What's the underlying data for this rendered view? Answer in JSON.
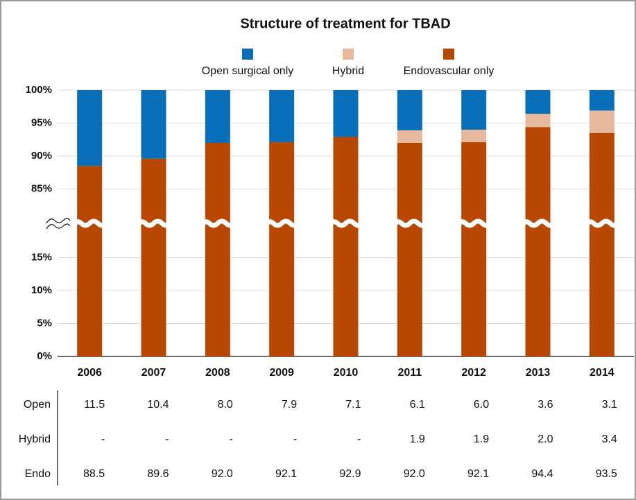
{
  "chart_data": {
    "type": "stacked_bar",
    "title": "Structure of treatment for TBAD",
    "categories": [
      "2006",
      "2007",
      "2008",
      "2009",
      "2010",
      "2011",
      "2012",
      "2013",
      "2014"
    ],
    "series": [
      {
        "name": "Open surgical only",
        "table_name": "Open",
        "color": "#0a6fba",
        "values": [
          11.5,
          10.4,
          8.0,
          7.9,
          7.1,
          6.1,
          6.0,
          3.6,
          3.1
        ],
        "value_labels": [
          "11.5",
          "10.4",
          "8.0",
          "7.9",
          "7.1",
          "6.1",
          "6.0",
          "3.6",
          "3.1"
        ]
      },
      {
        "name": "Hybrid",
        "table_name": "Hybrid",
        "color": "#e6b89c",
        "values": [
          null,
          null,
          null,
          null,
          null,
          1.9,
          1.9,
          2.0,
          3.4
        ],
        "value_labels": [
          "-",
          "-",
          "-",
          "-",
          "-",
          "1.9",
          "1.9",
          "2.0",
          "3.4"
        ]
      },
      {
        "name": "Endovascular only",
        "table_name": "Endo",
        "color": "#b84700",
        "values": [
          88.5,
          89.6,
          92.0,
          92.1,
          92.9,
          92.0,
          92.1,
          94.4,
          93.5
        ],
        "value_labels": [
          "88.5",
          "89.6",
          "92.0",
          "92.1",
          "92.9",
          "92.0",
          "92.1",
          "94.4",
          "93.5"
        ]
      }
    ],
    "ylim": [
      0,
      100
    ],
    "axis_break": [
      20,
      80
    ],
    "yticks": [
      {
        "value": 0,
        "label": "0%"
      },
      {
        "value": 5,
        "label": "5%"
      },
      {
        "value": 10,
        "label": "10%"
      },
      {
        "value": 15,
        "label": "15%"
      },
      {
        "value": 85,
        "label": "85%"
      },
      {
        "value": 90,
        "label": "90%"
      },
      {
        "value": 95,
        "label": "95%"
      },
      {
        "value": 100,
        "label": "100%"
      }
    ],
    "grid": true
  }
}
